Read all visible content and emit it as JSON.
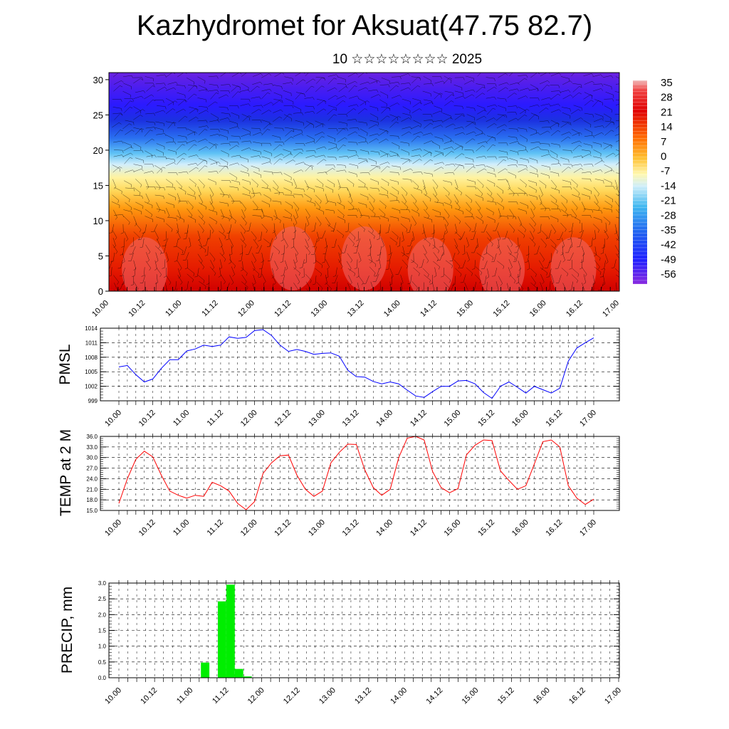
{
  "title": "Kazhydromet for Aksuat(47.75 82.7)",
  "subtitle": "10 ☆☆☆☆☆☆☆☆ 2025",
  "colors": {
    "pmsl_line": "#0000ff",
    "temp_line": "#ff0000",
    "precip_bar": "#00ee00",
    "colorbar_cold": "#7a1aff",
    "colorbar_zero": "#ffffff",
    "colorbar_hot": "#d00000"
  },
  "chart_data": [
    {
      "type": "heatmap",
      "name": "upper-air-cross-section",
      "title": "",
      "xlabel": "",
      "ylabel": "",
      "x_ticks": [
        "10.00",
        "10.12",
        "11.00",
        "11.12",
        "12.00",
        "12.12",
        "13.00",
        "13.12",
        "14.00",
        "14.12",
        "15.00",
        "15.12",
        "16.00",
        "16.12",
        "17.00"
      ],
      "y_ticks": [
        0,
        5,
        10,
        15,
        20,
        25,
        30
      ],
      "ylim": [
        0,
        31
      ],
      "colorbar_labels": [
        "35",
        "28",
        "21",
        "14",
        "7",
        "0",
        "-7",
        "-14",
        "-21",
        "-28",
        "-35",
        "-42",
        "-49",
        "-56"
      ],
      "colorbar_range": [
        -60,
        38
      ],
      "has_wind_barbs": true
    },
    {
      "type": "line",
      "name": "pmsl",
      "ylabel": "PMSL",
      "x_ticks": [
        "10.00",
        "10.12",
        "11.00",
        "11.12",
        "12.00",
        "12.12",
        "13.00",
        "13.12",
        "14.00",
        "14.12",
        "15.00",
        "15.12",
        "16.00",
        "16.12",
        "17.00"
      ],
      "y_ticks": [
        "999",
        "1002",
        "1005",
        "1008",
        "1011",
        "1014"
      ],
      "ylim": [
        999,
        1014
      ],
      "grid": true,
      "values": [
        1006,
        1006.3,
        1004.4,
        1002.9,
        1003.5,
        1005.7,
        1007.5,
        1007.5,
        1009.3,
        1009.7,
        1010.5,
        1010.2,
        1010.5,
        1012.2,
        1011.9,
        1012.1,
        1013.5,
        1013.7,
        1012.5,
        1010.5,
        1009.2,
        1009.6,
        1009.2,
        1008.6,
        1008.8,
        1008.9,
        1008.2,
        1005.3,
        1004,
        1003.9,
        1003,
        1002.5,
        1002.9,
        1002.5,
        1001.2,
        1000,
        999.7,
        1000.9,
        1002,
        1002,
        1003.1,
        1003.2,
        1002.5,
        1000.7,
        999.5,
        1002,
        1002.9,
        1001.8,
        1000.6,
        1002,
        1001.3,
        1000.6,
        1001.6,
        1007.2,
        1009.9,
        1011,
        1012
      ],
      "series": [
        {
          "values_ref": "values"
        }
      ]
    },
    {
      "type": "line",
      "name": "temp",
      "ylabel": "TEMP at 2 M",
      "x_ticks": [
        "10.00",
        "10.12",
        "11.00",
        "11.12",
        "12.00",
        "12.12",
        "13.00",
        "13.12",
        "14.00",
        "14.12",
        "15.00",
        "15.12",
        "16.00",
        "16.12",
        "17.00"
      ],
      "y_ticks": [
        "15.0",
        "18.0",
        "21.0",
        "24.0",
        "27.0",
        "30.0",
        "33.0",
        "36.0"
      ],
      "ylim": [
        15,
        36
      ],
      "grid": true,
      "values": [
        17,
        24,
        29.5,
        31.8,
        30.2,
        25,
        20.5,
        19.3,
        18.5,
        19.3,
        19,
        23,
        22,
        20.5,
        17,
        15.2,
        17.5,
        25.5,
        28.5,
        30.5,
        30.7,
        25,
        21,
        19,
        20.5,
        28.5,
        31.5,
        33.8,
        33.7,
        26.5,
        21.5,
        19.3,
        21,
        30,
        35.5,
        36,
        35,
        26,
        21.5,
        20,
        21.2,
        30.8,
        33.5,
        35,
        34.8,
        26.2,
        23.5,
        21,
        22,
        28.2,
        34.5,
        35,
        33,
        22,
        18.5,
        16.7,
        18.2
      ]
    },
    {
      "type": "bar",
      "name": "precip",
      "ylabel": "PRECIP, mm",
      "x_ticks": [
        "10.00",
        "10.12",
        "11.00",
        "11.12",
        "12.00",
        "12.12",
        "13.00",
        "13.12",
        "14.00",
        "14.12",
        "15.00",
        "15.12",
        "16.00",
        "16.12",
        "17.00"
      ],
      "y_ticks": [
        "0.0",
        "0.5",
        "1.0",
        "1.5",
        "2.0",
        "2.5",
        "3.0"
      ],
      "ylim": [
        0,
        3
      ],
      "grid": true,
      "values": [
        0,
        0,
        0,
        0,
        0,
        0,
        0,
        0,
        0,
        0,
        0.48,
        0,
        2.42,
        2.95,
        0.28,
        0.04,
        0,
        0,
        0,
        0,
        0,
        0,
        0,
        0,
        0,
        0,
        0,
        0,
        0,
        0,
        0,
        0,
        0,
        0,
        0,
        0,
        0,
        0,
        0,
        0,
        0,
        0,
        0,
        0,
        0,
        0,
        0,
        0,
        0,
        0,
        0,
        0,
        0,
        0,
        0,
        0,
        0
      ]
    }
  ]
}
